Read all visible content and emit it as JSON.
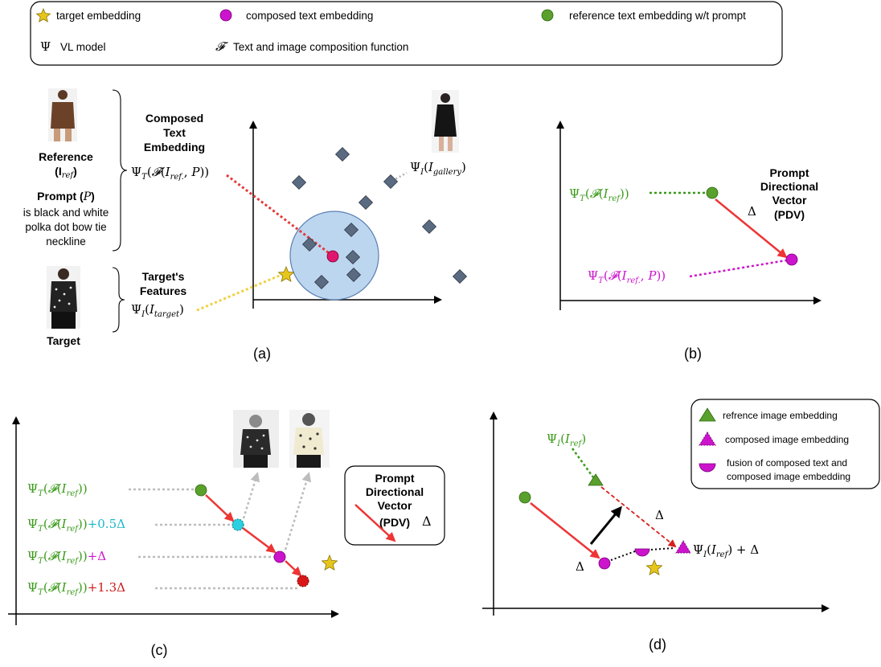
{
  "legend_top": {
    "target_embedding": "target embedding",
    "composed_text_embedding": "composed text embedding",
    "reference_text_embedding": "reference text embedding w/t prompt",
    "psi_symbol": "Ψ",
    "vl_model": "VL model",
    "f_symbol": "𝓕",
    "composition_function": "Text and image composition function",
    "colors": {
      "star": "#e6c61c",
      "magenta": "#cc14cc",
      "green": "#5aa02c"
    }
  },
  "panel_a": {
    "caption": "(a)",
    "reference_label": "Reference",
    "reference_sym": "(I",
    "reference_sub": "ref",
    "reference_close": ")",
    "prompt_label": "Prompt (",
    "prompt_sym": "P",
    "prompt_close": ")",
    "prompt_text": [
      "is black and white",
      "polka dot bow tie",
      "neckline"
    ],
    "target_label": "Target",
    "composed_title": [
      "Composed",
      "Text",
      "Embedding"
    ],
    "composed_formula": "Ψ_T(𝓕(I_ref., P))",
    "target_features_title": [
      "Target's",
      "Features"
    ],
    "target_formula": "Ψ_I(I_target)",
    "gallery_formula": "Ψ_I(I_gallery)",
    "icons": [
      "reference-photo-icon",
      "target-photo-icon",
      "gallery-photo-icon",
      "diamond-marker-icon",
      "star-marker-icon"
    ]
  },
  "panel_b": {
    "caption": "(b)",
    "ref_formula": "Ψ_T(𝓕(I_ref))",
    "composed_formula": "Ψ_T(𝓕(I_ref., P))",
    "delta": "Δ",
    "pdv_title": [
      "Prompt",
      "Directional",
      "Vector",
      "(PDV)"
    ]
  },
  "panel_c": {
    "caption": "(c)",
    "rows": [
      {
        "base": "Ψ_T(𝓕(I_ref))",
        "suffix": "",
        "color": "#3a9a1a"
      },
      {
        "base": "Ψ_T(𝓕(I_ref))",
        "suffix": "+0.5Δ",
        "color": "#1ab7c8"
      },
      {
        "base": "Ψ_T(𝓕(I_ref))",
        "suffix": "+Δ",
        "color": "#cc14cc"
      },
      {
        "base": "Ψ_T(𝓕(I_ref))",
        "suffix": "+1.3Δ",
        "color": "#cc1818"
      }
    ],
    "legend_title": [
      "Prompt",
      "Directional",
      "Vector",
      "(PDV)"
    ],
    "legend_delta": "Δ"
  },
  "panel_d": {
    "caption": "(d)",
    "ref_formula": "Ψ_I(I_ref)",
    "shift_formula": "Ψ_I(I_ref) + Δ",
    "delta_upper": "Δ",
    "delta_lower": "Δ",
    "legend": {
      "reference_image": "refrence image embedding",
      "composed_image": "composed image embedding",
      "fusion_line1": "fusion of composed text and",
      "fusion_line2": "composed image embedding"
    }
  }
}
